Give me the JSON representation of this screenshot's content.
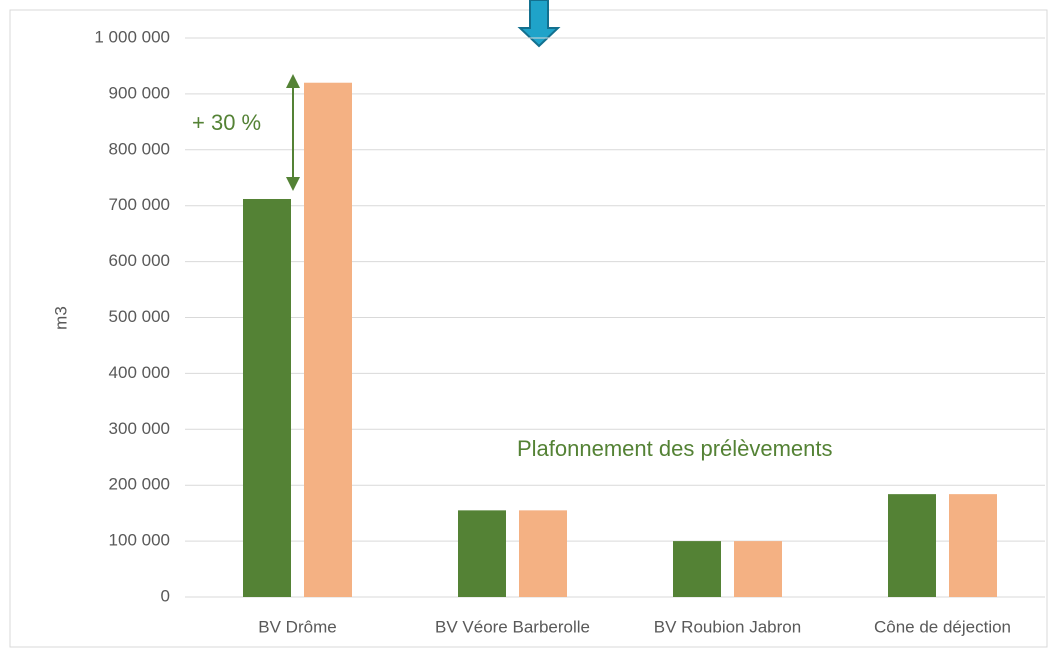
{
  "chart_data": {
    "type": "bar",
    "categories": [
      "BV Drôme",
      "BV Véore Barberolle",
      "BV Roubion Jabron",
      "Cône de déjection"
    ],
    "series": [
      {
        "color": "#548235",
        "values": [
          712000,
          155000,
          100000,
          184000
        ]
      },
      {
        "color": "#f4b183",
        "values": [
          920000,
          155000,
          100000,
          184000
        ]
      }
    ],
    "ylabel": "m3",
    "ylim": [
      0,
      1000000
    ],
    "yticks": [
      0,
      {
        "value": 100000,
        "label": "100 000"
      },
      {
        "value": 200000,
        "label": "200 000"
      },
      {
        "value": 300000,
        "label": "300 000"
      },
      {
        "value": 400000,
        "label": "400 000"
      },
      {
        "value": 500000,
        "label": "500 000"
      },
      {
        "value": 600000,
        "label": "600 000"
      },
      {
        "value": 700000,
        "label": "700 000"
      },
      {
        "value": 800000,
        "label": "800 000"
      },
      {
        "value": 900000,
        "label": "900 000"
      },
      {
        "value": 1000000,
        "label": "1 000 000"
      }
    ],
    "grid": true,
    "annotations": [
      "+ 30 %",
      "Plafonnement des prélèvements"
    ]
  }
}
